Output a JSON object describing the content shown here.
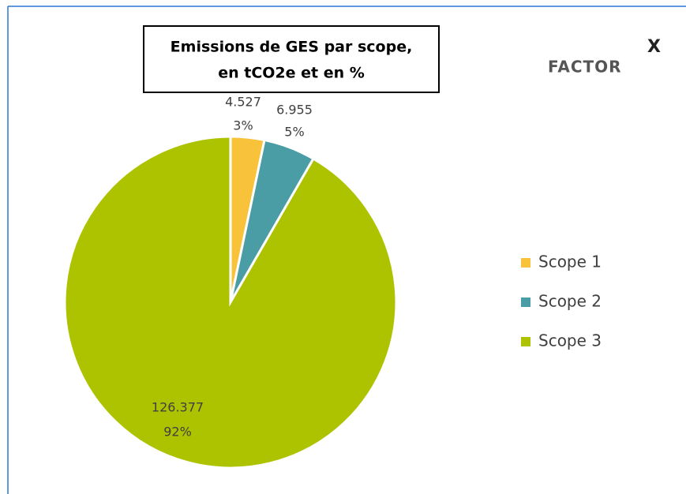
{
  "chart_data": {
    "type": "pie",
    "title": [
      "Emissions de GES par scope,",
      "en tCO2e et en %"
    ],
    "logo": "FACTOR",
    "logo_mark": "X",
    "categories": [
      "Scope 1",
      "Scope 2",
      "Scope 3"
    ],
    "values": [
      4527,
      6955,
      126377
    ],
    "value_labels": [
      "4.527",
      "6.955",
      "126.377"
    ],
    "percent_labels": [
      "3%",
      "5%",
      "92%"
    ],
    "colors": [
      "#f8c33a",
      "#4a9da4",
      "#aec300"
    ],
    "legend": "right"
  }
}
